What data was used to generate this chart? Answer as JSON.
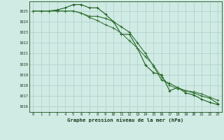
{
  "title": "Graphe pression niveau de la mer (hPa)",
  "bg_color": "#d0eae4",
  "grid_color": "#b0d4cc",
  "line_color1": "#1a5c1a",
  "line_color2": "#1a5c1a",
  "line_color3": "#1a5c1a",
  "xlim": [
    -0.5,
    23.5
  ],
  "ylim": [
    1015.5,
    1025.9
  ],
  "yticks": [
    1016,
    1017,
    1018,
    1019,
    1020,
    1021,
    1022,
    1023,
    1024,
    1025
  ],
  "xticks": [
    0,
    1,
    2,
    3,
    4,
    5,
    6,
    7,
    8,
    9,
    10,
    11,
    12,
    13,
    14,
    15,
    16,
    17,
    18,
    19,
    20,
    21,
    22,
    23
  ],
  "series1": [
    1025.0,
    1025.0,
    1025.0,
    1025.1,
    1025.3,
    1025.6,
    1025.6,
    1025.3,
    1025.3,
    1024.7,
    1024.0,
    1022.8,
    1022.8,
    1021.5,
    1019.9,
    1019.2,
    1019.0,
    1017.5,
    1017.8,
    1017.3,
    1017.1,
    1016.7,
    1016.4,
    1016.2
  ],
  "series2": [
    1025.0,
    1025.0,
    1025.0,
    1025.0,
    1025.0,
    1025.0,
    1024.8,
    1024.5,
    1024.5,
    1024.3,
    1024.0,
    1023.5,
    1023.0,
    1022.0,
    1021.0,
    1019.8,
    1018.5,
    1018.2,
    1017.8,
    1017.5,
    1017.3,
    1017.0,
    1016.8,
    1016.3
  ],
  "series3": [
    1025.0,
    1025.0,
    1025.0,
    1025.0,
    1025.0,
    1025.0,
    1024.8,
    1024.4,
    1024.1,
    1023.7,
    1023.4,
    1022.9,
    1022.2,
    1021.5,
    1020.7,
    1019.9,
    1018.8,
    1018.0,
    1017.7,
    1017.5,
    1017.4,
    1017.2,
    1016.9,
    1016.6
  ]
}
